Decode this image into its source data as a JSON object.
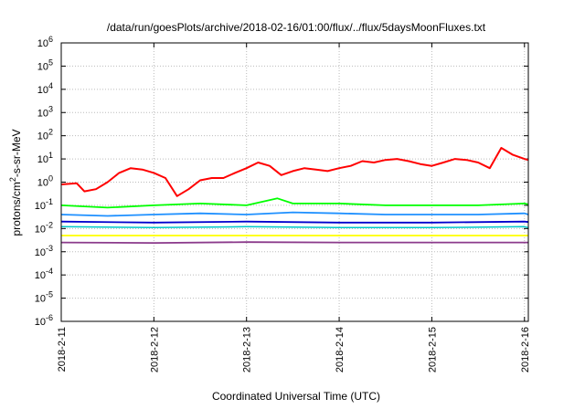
{
  "chart_data": {
    "type": "line",
    "title": "/data/run/goesPlots/archive/2018-02-16/01:00/flux/../flux/5daysMoonFluxes.txt",
    "xlabel": "Coordinated Universal Time (UTC)",
    "ylabel": "protons/cm²-s-sr-MeV",
    "y_scale": "log",
    "ylim": [
      1e-06,
      1000000.0
    ],
    "xlim": [
      "2018-02-11",
      "2018-02-16 01:00"
    ],
    "x_ticks": [
      "2018-2-11",
      "2018-2-12",
      "2018-2-13",
      "2018-2-14",
      "2018-2-15",
      "2018-2-16"
    ],
    "y_ticks": [
      {
        "value": 1e-06,
        "base": "10",
        "exp": "-6"
      },
      {
        "value": 1e-05,
        "base": "10",
        "exp": "-5"
      },
      {
        "value": 0.0001,
        "base": "10",
        "exp": "-4"
      },
      {
        "value": 0.001,
        "base": "10",
        "exp": "-3"
      },
      {
        "value": 0.01,
        "base": "10",
        "exp": "-2"
      },
      {
        "value": 0.1,
        "base": "10",
        "exp": "-1"
      },
      {
        "value": 1.0,
        "base": "10",
        "exp": "0"
      },
      {
        "value": 10.0,
        "base": "10",
        "exp": "1"
      },
      {
        "value": 100.0,
        "base": "10",
        "exp": "2"
      },
      {
        "value": 1000.0,
        "base": "10",
        "exp": "3"
      },
      {
        "value": 10000.0,
        "base": "10",
        "exp": "4"
      },
      {
        "value": 100000.0,
        "base": "10",
        "exp": "5"
      },
      {
        "value": 1000000.0,
        "base": "10",
        "exp": "6"
      }
    ],
    "grid": true,
    "series": [
      {
        "color": "#ff0000",
        "stroke": 2,
        "x": [
          "2018-02-11 00:00",
          "2018-02-11 04:00",
          "2018-02-11 06:00",
          "2018-02-11 09:00",
          "2018-02-11 12:00",
          "2018-02-11 15:00",
          "2018-02-11 18:00",
          "2018-02-11 21:00",
          "2018-02-12 00:00",
          "2018-02-12 03:00",
          "2018-02-12 06:00",
          "2018-02-12 09:00",
          "2018-02-12 12:00",
          "2018-02-12 15:00",
          "2018-02-12 18:00",
          "2018-02-12 21:00",
          "2018-02-13 00:00",
          "2018-02-13 03:00",
          "2018-02-13 06:00",
          "2018-02-13 09:00",
          "2018-02-13 12:00",
          "2018-02-13 15:00",
          "2018-02-13 18:00",
          "2018-02-13 21:00",
          "2018-02-14 00:00",
          "2018-02-14 03:00",
          "2018-02-14 06:00",
          "2018-02-14 09:00",
          "2018-02-14 12:00",
          "2018-02-14 15:00",
          "2018-02-14 18:00",
          "2018-02-14 21:00",
          "2018-02-15 00:00",
          "2018-02-15 03:00",
          "2018-02-15 06:00",
          "2018-02-15 09:00",
          "2018-02-15 12:00",
          "2018-02-15 15:00",
          "2018-02-15 18:00",
          "2018-02-15 21:00",
          "2018-02-16 00:00",
          "2018-02-16 01:00"
        ],
        "values": [
          0.8,
          0.9,
          0.4,
          0.5,
          1.0,
          2.5,
          4.0,
          3.5,
          2.5,
          1.5,
          0.25,
          0.5,
          1.2,
          1.5,
          1.5,
          2.5,
          4,
          7,
          5,
          2,
          3,
          4,
          3.5,
          3,
          4,
          5,
          8,
          7,
          9,
          10,
          8,
          6,
          5,
          7,
          10,
          9,
          7,
          4,
          30,
          15,
          10,
          9
        ]
      },
      {
        "color": "#00ff00",
        "stroke": 1.8,
        "x": [
          "2018-02-11 00:00",
          "2018-02-11 12:00",
          "2018-02-12 00:00",
          "2018-02-12 12:00",
          "2018-02-13 00:00",
          "2018-02-13 08:00",
          "2018-02-13 12:00",
          "2018-02-14 00:00",
          "2018-02-14 12:00",
          "2018-02-15 00:00",
          "2018-02-15 12:00",
          "2018-02-16 00:00",
          "2018-02-16 01:00"
        ],
        "values": [
          0.1,
          0.08,
          0.1,
          0.12,
          0.1,
          0.2,
          0.12,
          0.12,
          0.1,
          0.1,
          0.1,
          0.12,
          0.11
        ]
      },
      {
        "color": "#1e90ff",
        "stroke": 1.8,
        "x": [
          "2018-02-11 00:00",
          "2018-02-11 12:00",
          "2018-02-12 00:00",
          "2018-02-12 12:00",
          "2018-02-13 00:00",
          "2018-02-13 12:00",
          "2018-02-14 00:00",
          "2018-02-14 12:00",
          "2018-02-15 00:00",
          "2018-02-15 12:00",
          "2018-02-16 00:00",
          "2018-02-16 01:00"
        ],
        "values": [
          0.04,
          0.035,
          0.04,
          0.045,
          0.04,
          0.05,
          0.045,
          0.04,
          0.04,
          0.04,
          0.045,
          0.04
        ]
      },
      {
        "color": "#00c8c8",
        "stroke": 1.5,
        "x": [
          "2018-02-11 00:00",
          "2018-02-12 00:00",
          "2018-02-13 00:00",
          "2018-02-14 00:00",
          "2018-02-15 00:00",
          "2018-02-16 00:00",
          "2018-02-16 01:00"
        ],
        "values": [
          0.012,
          0.011,
          0.012,
          0.011,
          0.011,
          0.012,
          0.011
        ]
      },
      {
        "color": "#0000cd",
        "stroke": 1.8,
        "x": [
          "2018-02-11 00:00",
          "2018-02-12 00:00",
          "2018-02-13 00:00",
          "2018-02-14 00:00",
          "2018-02-15 00:00",
          "2018-02-16 00:00",
          "2018-02-16 01:00"
        ],
        "values": [
          0.02,
          0.018,
          0.02,
          0.018,
          0.018,
          0.02,
          0.019
        ]
      },
      {
        "color": "#ffff00",
        "stroke": 1.8,
        "x": [
          "2018-02-11 00:00",
          "2018-02-16 01:00"
        ],
        "values": [
          0.005,
          0.005
        ]
      },
      {
        "color": "#8b3a8b",
        "stroke": 1.8,
        "x": [
          "2018-02-11 00:00",
          "2018-02-12 00:00",
          "2018-02-13 00:00",
          "2018-02-14 00:00",
          "2018-02-15 00:00",
          "2018-02-16 00:00",
          "2018-02-16 01:00"
        ],
        "values": [
          0.0025,
          0.0024,
          0.0026,
          0.0025,
          0.0025,
          0.0025,
          0.0025
        ]
      }
    ]
  }
}
